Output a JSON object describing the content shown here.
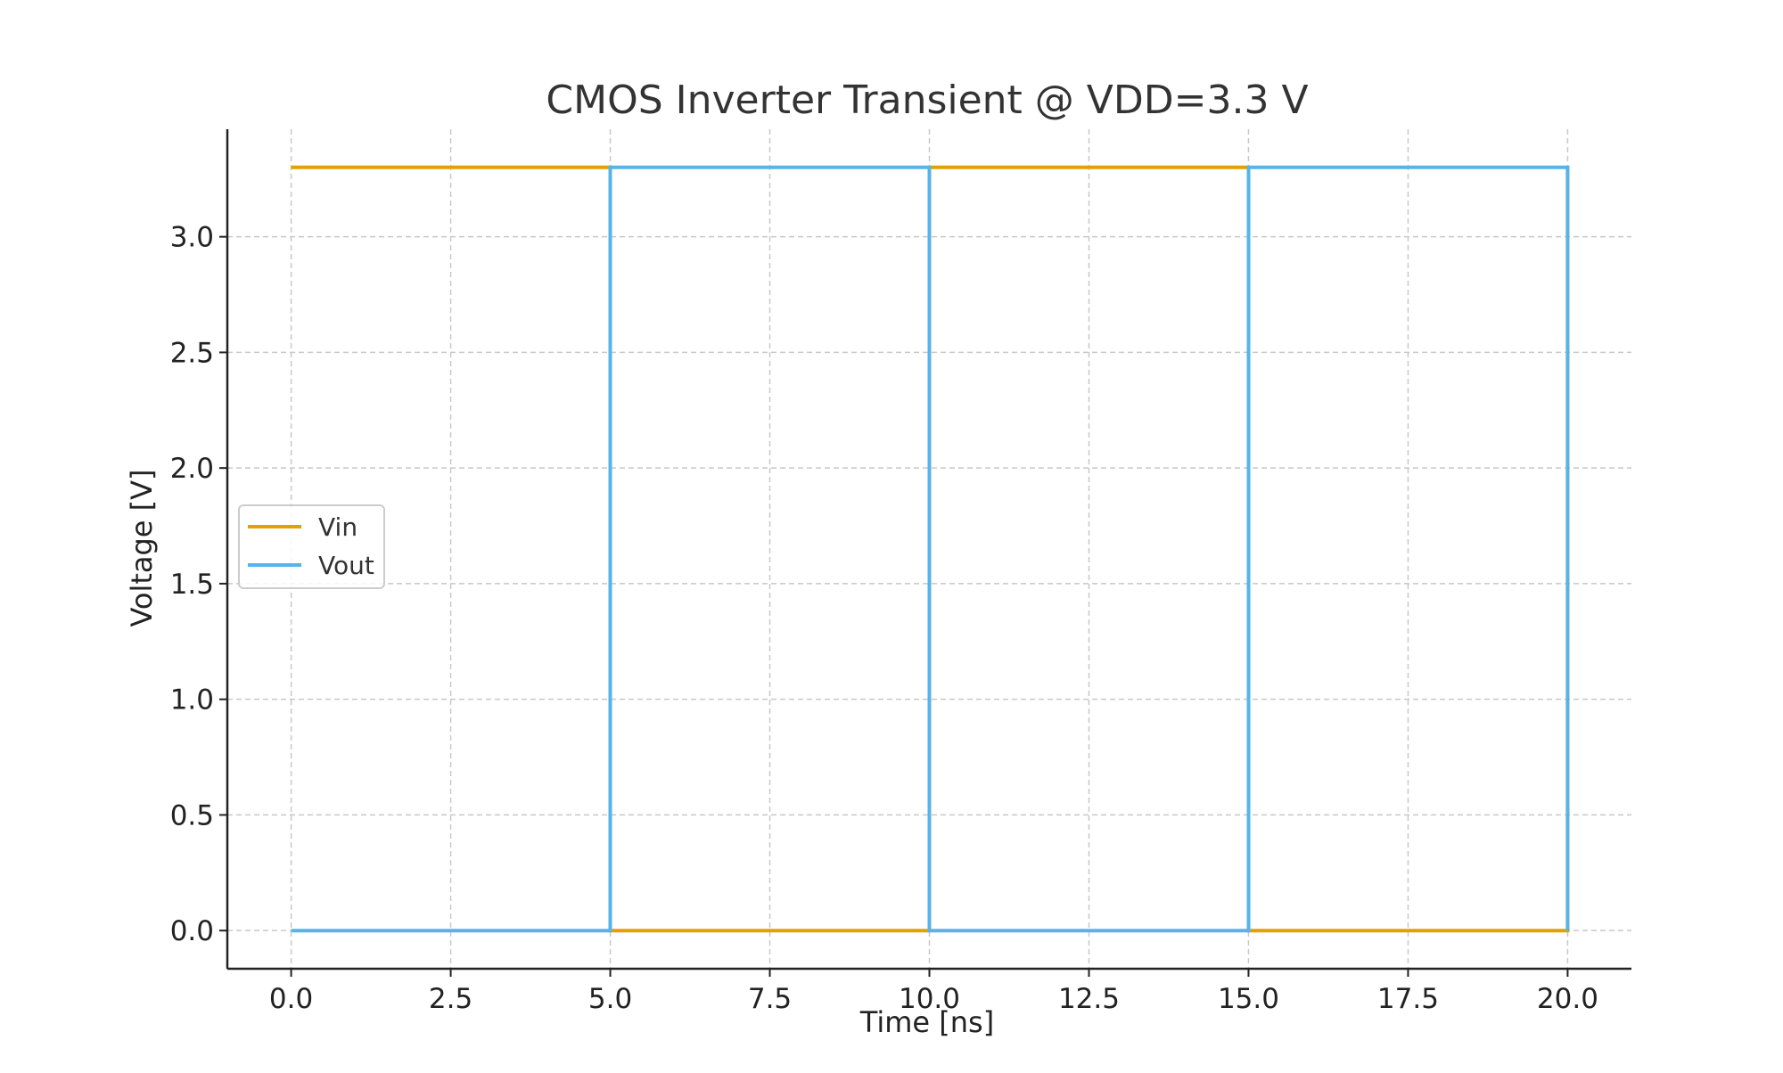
{
  "chart_data": {
    "type": "line",
    "title": "CMOS Inverter Transient @ VDD=3.3 V",
    "xlabel": "Time [ns]",
    "ylabel": "Voltage [V]",
    "xlim": [
      -1.0,
      21.0
    ],
    "ylim": [
      -0.165,
      3.465
    ],
    "xticks": [
      0.0,
      2.5,
      5.0,
      7.5,
      10.0,
      12.5,
      15.0,
      17.5,
      20.0
    ],
    "xtick_labels": [
      "0.0",
      "2.5",
      "5.0",
      "7.5",
      "10.0",
      "12.5",
      "15.0",
      "17.5",
      "20.0"
    ],
    "yticks": [
      0.0,
      0.5,
      1.0,
      1.5,
      2.0,
      2.5,
      3.0
    ],
    "ytick_labels": [
      "0.0",
      "0.5",
      "1.0",
      "1.5",
      "2.0",
      "2.5",
      "3.0"
    ],
    "grid": true,
    "legend_position": "center-left",
    "series": [
      {
        "name": "Vin",
        "color": "#E69F00",
        "x": [
          0,
          5,
          5,
          10,
          10,
          15,
          15,
          20,
          20
        ],
        "y": [
          3.3,
          3.3,
          0,
          0,
          3.3,
          3.3,
          0,
          0,
          3.3
        ]
      },
      {
        "name": "Vout",
        "color": "#56B4E9",
        "x": [
          0,
          5,
          5,
          10,
          10,
          15,
          15,
          20,
          20
        ],
        "y": [
          0,
          0,
          3.3,
          3.3,
          0,
          0,
          3.3,
          3.3,
          0
        ]
      }
    ]
  }
}
